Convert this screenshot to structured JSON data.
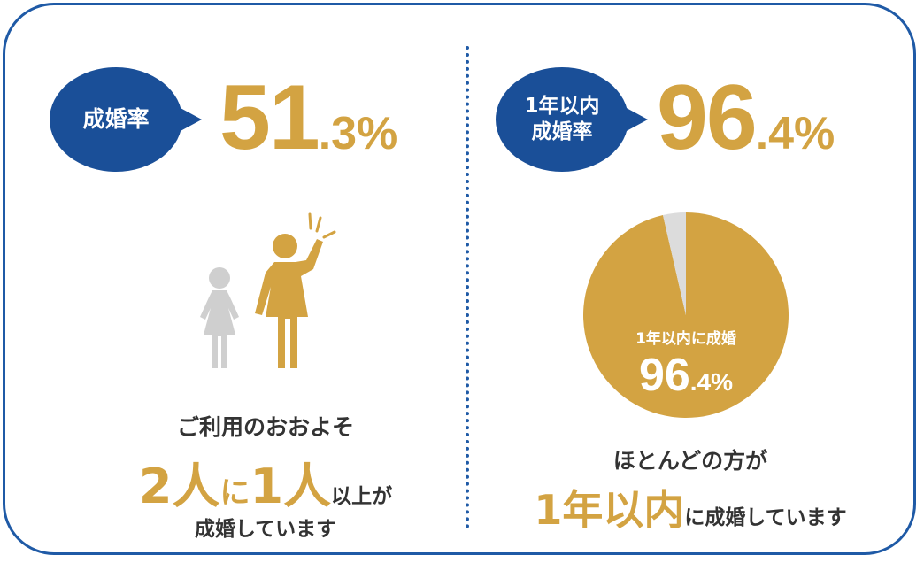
{
  "left": {
    "bubble": "成婚率",
    "rate_int": "51",
    "rate_dec": ".3%",
    "caption_line1": "ご利用のおおよそ",
    "caption_two": "2",
    "caption_person1": "人",
    "caption_ni": "に",
    "caption_one": "1",
    "caption_person2": "人",
    "caption_tail": "以上が",
    "caption_line3": "成婚しています"
  },
  "right": {
    "bubble_line1": "1年以内",
    "bubble_line2": "成婚率",
    "rate_int": "96",
    "rate_dec": ".4%",
    "pie_label": "1年以内に成婚",
    "pie_value_int": "96",
    "pie_value_dec": ".4%",
    "caption_line1": "ほとんどの方が",
    "caption_highlight": "1年以内",
    "caption_tail": "に成婚しています"
  },
  "chart_data": {
    "type": "pie",
    "values": [
      96.4,
      3.6
    ],
    "colors": [
      "#d3a342",
      "#dcdcdc"
    ]
  },
  "colors": {
    "accent": "#d3a342",
    "navy": "#1a4f98",
    "border": "#1f5aa6",
    "grey_figure": "#cfcfcf"
  },
  "icons": {
    "figures": "two-people-icon",
    "cheer": "celebration-lines-icon"
  }
}
